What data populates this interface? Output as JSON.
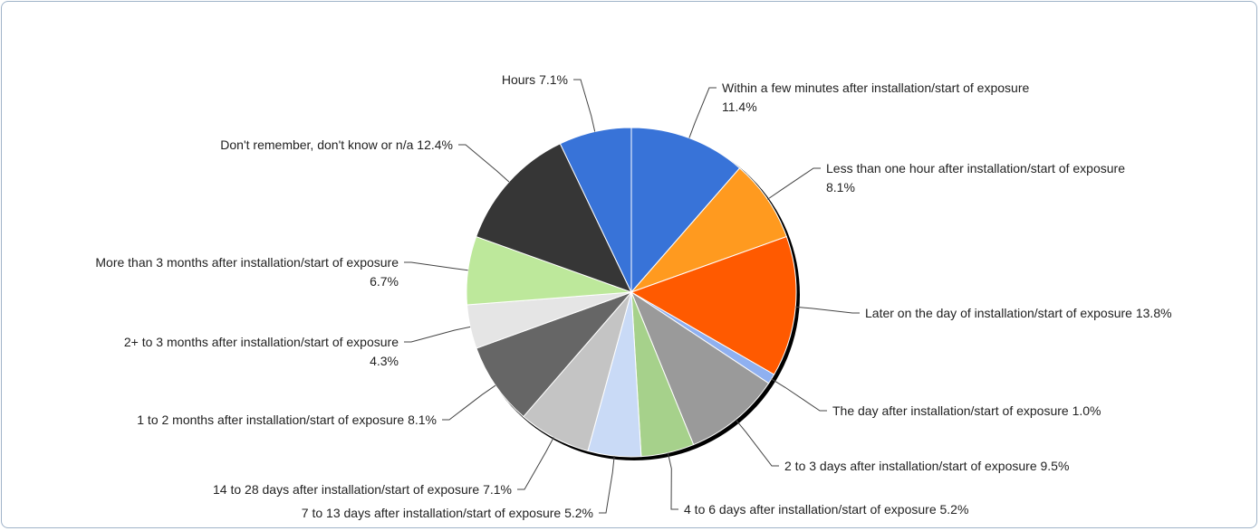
{
  "chart_data": {
    "type": "pie",
    "categories": [
      "Within a few minutes after installation/start of exposure",
      "Less than one hour after installation/start of exposure",
      "Later on the day of installation/start of exposure",
      "The day after installation/start of exposure",
      "2 to 3 days after installation/start of exposure",
      "4 to 6 days after installation/start of exposure",
      "7 to 13 days after installation/start of exposure",
      "14 to 28 days after installation/start of exposure",
      "1 to 2 months after installation/start of exposure",
      "2+ to 3 months after installation/start of exposure",
      "More than 3 months after installation/start of exposure",
      "Don't remember, don't know or n/a",
      "Hours"
    ],
    "values": [
      11.4,
      8.1,
      13.8,
      1.0,
      9.5,
      5.2,
      5.2,
      7.1,
      8.1,
      4.3,
      6.7,
      12.4,
      7.1
    ],
    "value_labels": [
      "11.4%",
      "8.1%",
      "13.8%",
      "1.0%",
      "9.5%",
      "5.2%",
      "5.2%",
      "7.1%",
      "8.1%",
      "4.3%",
      "6.7%",
      "12.4%",
      "7.1%"
    ],
    "colors": [
      "#3873d8",
      "#ff9a1f",
      "#ff5a00",
      "#8fb0f0",
      "#9a9a9a",
      "#a6d18b",
      "#c9daf6",
      "#c4c4c4",
      "#666666",
      "#e5e5e5",
      "#bde89b",
      "#363636",
      "#3873d8"
    ]
  }
}
